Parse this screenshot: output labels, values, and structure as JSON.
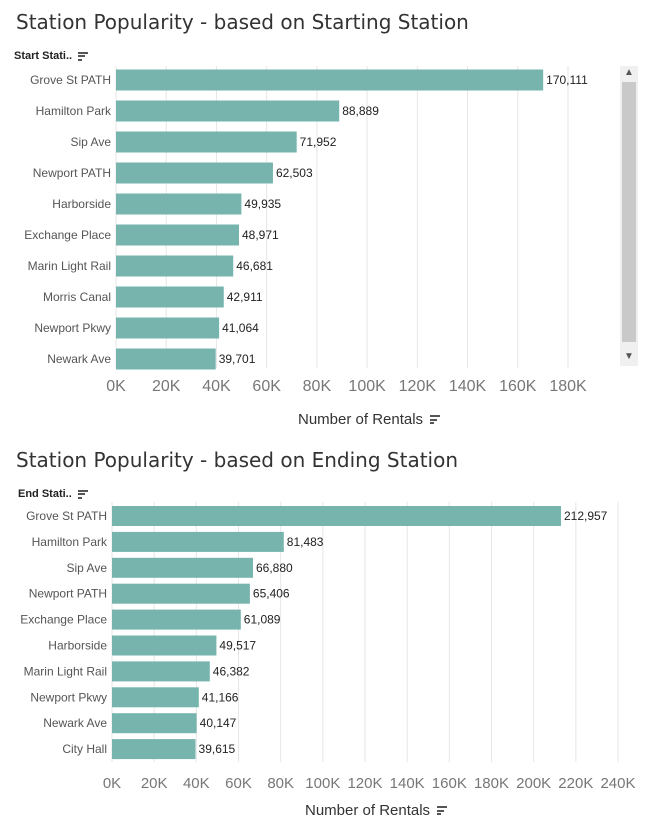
{
  "colors": {
    "bar": "#76b4ad",
    "grid": "#e6e6e6",
    "tick_label": "#777777"
  },
  "chart_data": [
    {
      "type": "bar",
      "orientation": "horizontal",
      "title": "Station Popularity - based on Starting Station",
      "category_header": "Start Stati..",
      "xlabel": "Number of Rentals",
      "categories": [
        "Grove St PATH",
        "Hamilton Park",
        "Sip Ave",
        "Newport PATH",
        "Harborside",
        "Exchange Place",
        "Marin Light Rail",
        "Morris Canal",
        "Newport Pkwy",
        "Newark Ave"
      ],
      "values": [
        170111,
        88889,
        71952,
        62503,
        49935,
        48971,
        46681,
        42911,
        41064,
        39701
      ],
      "value_labels": [
        "170,111",
        "88,889",
        "71,952",
        "62,503",
        "49,935",
        "48,971",
        "46,681",
        "42,911",
        "41,064",
        "39,701"
      ],
      "xlim": [
        0,
        180000
      ],
      "xticks": [
        0,
        20000,
        40000,
        60000,
        80000,
        100000,
        120000,
        140000,
        160000,
        180000
      ],
      "xtick_labels": [
        "0K",
        "20K",
        "40K",
        "60K",
        "80K",
        "100K",
        "120K",
        "140K",
        "160K",
        "180K"
      ],
      "grid": true
    },
    {
      "type": "bar",
      "orientation": "horizontal",
      "title": "Station Popularity - based on Ending Station",
      "category_header": "End Stati..",
      "xlabel": "Number of Rentals",
      "categories": [
        "Grove St PATH",
        "Hamilton Park",
        "Sip Ave",
        "Newport PATH",
        "Exchange Place",
        "Harborside",
        "Marin Light Rail",
        "Newport Pkwy",
        "Newark Ave",
        "City Hall"
      ],
      "values": [
        212957,
        81483,
        66880,
        65406,
        61089,
        49517,
        46382,
        41166,
        40147,
        39615
      ],
      "value_labels": [
        "212,957",
        "81,483",
        "66,880",
        "65,406",
        "61,089",
        "49,517",
        "46,382",
        "41,166",
        "40,147",
        "39,615"
      ],
      "xlim": [
        0,
        240000
      ],
      "xticks": [
        0,
        20000,
        40000,
        60000,
        80000,
        100000,
        120000,
        140000,
        160000,
        180000,
        200000,
        220000,
        240000
      ],
      "xtick_labels": [
        "0K",
        "20K",
        "40K",
        "60K",
        "80K",
        "100K",
        "120K",
        "140K",
        "160K",
        "180K",
        "200K",
        "220K",
        "240K"
      ],
      "grid": true
    }
  ]
}
